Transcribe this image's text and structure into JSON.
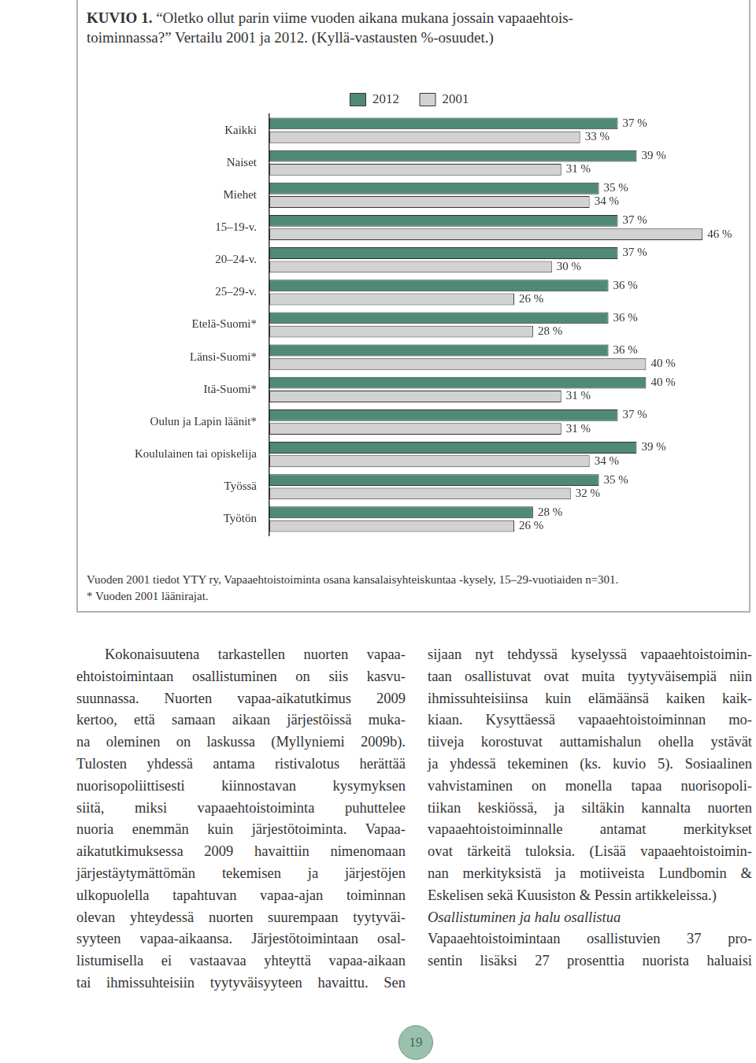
{
  "figure": {
    "label": "KUVIO 1.",
    "title_lines": [
      "“Oletko ollut parin viime vuoden aikana mukana jossain vapaaehtois-",
      "toiminnassa?” Vertailu 2001 ja 2012. (Kyllä-vastausten %-osuudet.)"
    ],
    "notes": [
      "Vuoden 2001 tiedot YTY ry, Vapaaehtoistoiminta osana kansalaisyhteiskuntaa -kysely, 15–29-vuotiaiden n=301.",
      "* Vuoden 2001 läänirajat."
    ]
  },
  "chart_data": {
    "type": "bar",
    "orientation": "horizontal",
    "categories": [
      "Kaikki",
      "Naiset",
      "Miehet",
      "15–19-v.",
      "20–24-v.",
      "25–29-v.",
      "Etelä-Suomi*",
      "Länsi-Suomi*",
      "Itä-Suomi*",
      "Oulun ja Lapin läänit*",
      "Koululainen tai opiskelija",
      "Työssä",
      "Työtön"
    ],
    "series": [
      {
        "name": "2012",
        "color": "#4f8a78",
        "values": [
          37,
          39,
          35,
          37,
          37,
          36,
          36,
          36,
          40,
          37,
          39,
          35,
          28
        ],
        "value_labels": [
          "37 %",
          "39 %",
          "35 %",
          "37 %",
          "37 %",
          "36 %",
          "36 %",
          "36 %",
          "40 %",
          "37 %",
          "39 %",
          "35 %",
          "28 %"
        ]
      },
      {
        "name": "2001",
        "color": "#d2d2d2",
        "values": [
          33,
          31,
          34,
          46,
          30,
          26,
          28,
          40,
          31,
          31,
          34,
          32,
          26
        ],
        "value_labels": [
          "33 %",
          "31 %",
          "34 %",
          "46 %",
          "30 %",
          "26 %",
          "28 %",
          "40 %",
          "31 %",
          "31 %",
          "34 %",
          "32 %",
          "26 %"
        ]
      }
    ],
    "xlim": [
      0,
      50
    ],
    "xticks": [
      0,
      50
    ],
    "grid": false,
    "legend": "top",
    "data_labels": true,
    "tick_labels": "y"
  },
  "body": {
    "left_column": [
      {
        "lines": [
          "Kokonaisuutena tarkastellen nuorten vapaa-",
          "ehtoistoimintaan osallistuminen on siis kasvu-",
          "suunnassa. Nuorten vapaa-aikatutkimus 2009",
          "kertoo, että samaan aikaan järjestöissä muka-",
          "na oleminen on laskussa (Myllyniemi 2009b).",
          "Tulosten yhdessä antama ristivalotus herättää",
          "nuorisopoliittisesti kiinnostavan kysymyksen",
          "siitä, miksi vapaaehtoistoiminta puhuttelee",
          "nuoria enemmän kuin järjestötoiminta. Vapaa-",
          "aikatutkimuksessa 2009 havaittiin nimenomaan",
          "järjestäytymättömän tekemisen ja järjestöjen",
          "ulkopuolella tapahtuvan vapaa-ajan toiminnan",
          "olevan yhteydessä nuorten suurempaan tyytyväi-",
          "syyteen vapaa-aikaansa. Järjestötoimintaan osal-",
          "listumisella ei vastaavaa yhteyttä vapaa-aikaan",
          "tai ihmissuhteisiin tyytyväisyyteen havaittu. Sen"
        ]
      }
    ],
    "right_column": [
      {
        "lines": [
          "sijaan nyt tehdyssä kyselyssä vapaaehtoistoimin-",
          "taan osallistuvat ovat muita tyytyväisempiä niin",
          "ihmissuhteisiinsa kuin elämäänsä kaiken kaik-",
          "kiaan. Kysyttäessä vapaaehtoistoiminnan mo-",
          "tiiveja korostuvat auttamishalun ohella ystävät",
          "ja yhdessä tekeminen (ks. kuvio 5). Sosiaalinen",
          "vahvistaminen on monella tapaa nuorisopoli-",
          "tiikan keskiössä, ja siltäkin kannalta nuorten",
          "vapaaehtoistoiminnalle antamat merkitykset",
          "ovat tärkeitä tuloksia. (Lisää vapaaehtoistoimin-",
          "nan merkityksistä ja motiiveista Lundbomin &",
          "Eskelisen sekä Kuusiston & Pessin artikkeleissa.)"
        ]
      },
      {
        "heading": "Osallistuminen ja halu osallistua"
      },
      {
        "lines": [
          "Vapaaehtoistoimintaan osallistuvien 37 pro-",
          "sentin lisäksi 27 prosenttia nuorista haluaisi"
        ]
      }
    ]
  },
  "page_number": 19
}
